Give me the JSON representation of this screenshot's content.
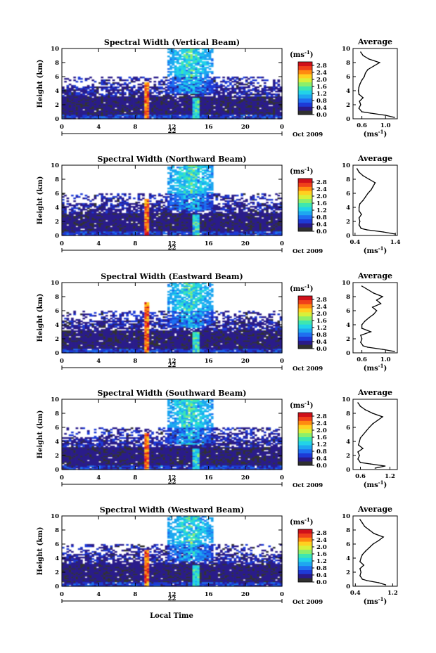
{
  "figure": {
    "xlabel": "Local Time",
    "date_label": "22",
    "month_year_label": "Oct 2009",
    "colorbar_unit": "(ms",
    "colorbar_unit_exp": "-1",
    "colorbar_unit_close": ")",
    "profile_title": "Average",
    "ylabel": "Height (km)",
    "profile_xlabel": "(ms",
    "profile_xlabel_exp": "-1",
    "profile_xlabel_close": ")"
  },
  "colors": {
    "colormap": [
      "#303030",
      "#2a1a8a",
      "#1e3ad6",
      "#1f6ff0",
      "#1ea7f0",
      "#22d3e8",
      "#3ee6b0",
      "#8cef6a",
      "#d8f03a",
      "#ffd020",
      "#ff8a10",
      "#f0401a",
      "#d0101a"
    ]
  },
  "chart_data": [
    {
      "type": "heatmap",
      "title": "Spectral Width (Vertical Beam)",
      "x_ticks": [
        "0",
        "4",
        "8",
        "12",
        "16",
        "20",
        "0"
      ],
      "y_ticks": [
        "0",
        "2",
        "4",
        "6",
        "8",
        "10"
      ],
      "xlim": [
        0,
        24
      ],
      "ylim": [
        0,
        10
      ],
      "colorbar_ticks": [
        "0.0",
        "0.4",
        "0.8",
        "1.2",
        "1.6",
        "2.0",
        "2.4",
        "2.8"
      ],
      "colorbar_range": [
        0.0,
        3.0
      ],
      "profile": {
        "title": "Average",
        "x_ticks": [
          "0.6",
          "1.0"
        ],
        "xlim": [
          0.45,
          1.2
        ],
        "y_ticks": [
          "0",
          "2",
          "4",
          "6",
          "8",
          "10"
        ],
        "ylim": [
          0,
          10
        ],
        "height_km": [
          0.2,
          0.5,
          0.8,
          1.0,
          1.5,
          2.0,
          2.5,
          3.0,
          3.5,
          4.0,
          4.5,
          5.0,
          5.5,
          6.0,
          6.5,
          7.0,
          7.5,
          8.0,
          8.5,
          9.0,
          9.5
        ],
        "width_ms": [
          1.15,
          1.0,
          0.75,
          0.6,
          0.55,
          0.58,
          0.56,
          0.62,
          0.55,
          0.54,
          0.55,
          0.57,
          0.6,
          0.64,
          0.66,
          0.7,
          0.8,
          0.9,
          0.72,
          0.62,
          0.58
        ]
      }
    },
    {
      "type": "heatmap",
      "title": "Spectral Width (Northward Beam)",
      "x_ticks": [
        "0",
        "4",
        "8",
        "12",
        "16",
        "20",
        "0"
      ],
      "y_ticks": [
        "0",
        "2",
        "4",
        "6",
        "8",
        "10"
      ],
      "xlim": [
        0,
        24
      ],
      "ylim": [
        0,
        10
      ],
      "colorbar_ticks": [
        "0.0",
        "0.4",
        "0.8",
        "1.2",
        "1.6",
        "2.0",
        "2.4",
        "2.8"
      ],
      "colorbar_range": [
        0.0,
        3.0
      ],
      "profile": {
        "title": "Average",
        "x_ticks": [
          "0.4",
          "1.4"
        ],
        "xlim": [
          0.35,
          1.45
        ],
        "y_ticks": [
          "0",
          "2",
          "4",
          "6",
          "8",
          "10"
        ],
        "ylim": [
          0,
          10
        ],
        "height_km": [
          0.2,
          0.5,
          0.8,
          1.0,
          1.5,
          2.0,
          2.5,
          3.0,
          3.5,
          4.0,
          4.5,
          5.0,
          5.5,
          6.0,
          6.5,
          7.0,
          7.5,
          8.0,
          8.5,
          9.0,
          9.5
        ],
        "width_ms": [
          1.4,
          1.1,
          0.7,
          0.55,
          0.5,
          0.52,
          0.5,
          0.56,
          0.5,
          0.5,
          0.52,
          0.6,
          0.66,
          0.72,
          0.8,
          0.85,
          0.9,
          0.75,
          0.6,
          0.5,
          0.45
        ]
      }
    },
    {
      "type": "heatmap",
      "title": "Spectral Width (Eastward Beam)",
      "x_ticks": [
        "0",
        "4",
        "8",
        "12",
        "16",
        "20",
        "0"
      ],
      "y_ticks": [
        "0",
        "2",
        "4",
        "6",
        "8",
        "10"
      ],
      "xlim": [
        0,
        24
      ],
      "ylim": [
        0,
        10
      ],
      "colorbar_ticks": [
        "0.0",
        "0.4",
        "0.8",
        "1.2",
        "1.6",
        "2.0",
        "2.4",
        "2.8"
      ],
      "colorbar_range": [
        0.0,
        3.0
      ],
      "profile": {
        "title": "Average",
        "x_ticks": [
          "0.6",
          "1.0"
        ],
        "xlim": [
          0.45,
          1.2
        ],
        "y_ticks": [
          "0",
          "2",
          "4",
          "6",
          "8",
          "10"
        ],
        "ylim": [
          0,
          10
        ],
        "height_km": [
          0.2,
          0.5,
          0.8,
          1.0,
          1.5,
          2.0,
          2.5,
          3.0,
          3.5,
          4.0,
          4.5,
          5.0,
          5.5,
          6.0,
          6.5,
          7.0,
          7.5,
          8.0,
          8.5,
          9.0,
          9.5
        ],
        "width_ms": [
          1.15,
          0.95,
          0.7,
          0.62,
          0.58,
          0.6,
          0.58,
          0.75,
          0.6,
          0.6,
          0.65,
          0.72,
          0.8,
          0.85,
          0.78,
          0.92,
          0.85,
          0.95,
          0.8,
          0.7,
          0.6
        ]
      }
    },
    {
      "type": "heatmap",
      "title": "Spectral Width (Southward Beam)",
      "x_ticks": [
        "0",
        "4",
        "8",
        "12",
        "16",
        "20",
        "0"
      ],
      "y_ticks": [
        "0",
        "2",
        "4",
        "6",
        "8",
        "10"
      ],
      "xlim": [
        0,
        24
      ],
      "ylim": [
        0,
        10
      ],
      "colorbar_ticks": [
        "0.0",
        "0.4",
        "0.8",
        "1.2",
        "1.6",
        "2.0",
        "2.4",
        "2.8"
      ],
      "colorbar_range": [
        0.0,
        3.0
      ],
      "profile": {
        "title": "Average",
        "x_ticks": [
          "0.6",
          "1.2"
        ],
        "xlim": [
          0.45,
          1.35
        ],
        "y_ticks": [
          "0",
          "2",
          "4",
          "6",
          "8",
          "10"
        ],
        "ylim": [
          0,
          10
        ],
        "height_km": [
          0.2,
          0.5,
          0.8,
          1.0,
          1.5,
          2.0,
          2.5,
          3.0,
          3.5,
          4.0,
          4.5,
          5.0,
          5.5,
          6.0,
          6.5,
          7.0,
          7.5,
          8.0,
          8.5,
          9.0,
          9.5
        ],
        "width_ms": [
          0.9,
          1.1,
          0.8,
          0.6,
          0.55,
          0.58,
          0.55,
          0.65,
          0.56,
          0.58,
          0.6,
          0.66,
          0.72,
          0.78,
          0.85,
          0.95,
          1.05,
          0.85,
          0.7,
          0.6,
          0.55
        ]
      }
    },
    {
      "type": "heatmap",
      "title": "Spectral Width (Westward Beam)",
      "x_ticks": [
        "0",
        "4",
        "8",
        "12",
        "16",
        "20",
        "0"
      ],
      "y_ticks": [
        "0",
        "2",
        "4",
        "6",
        "8",
        "10"
      ],
      "xlim": [
        0,
        24
      ],
      "ylim": [
        0,
        10
      ],
      "colorbar_ticks": [
        "0.0",
        "0.4",
        "0.8",
        "1.2",
        "1.6",
        "2.0",
        "2.4",
        "2.8"
      ],
      "colorbar_range": [
        0.0,
        3.0
      ],
      "profile": {
        "title": "Average",
        "x_ticks": [
          "0.4",
          "1.2"
        ],
        "xlim": [
          0.35,
          1.3
        ],
        "y_ticks": [
          "0",
          "2",
          "4",
          "6",
          "8",
          "10"
        ],
        "ylim": [
          0,
          10
        ],
        "height_km": [
          0.2,
          0.5,
          0.8,
          1.0,
          1.5,
          2.0,
          2.5,
          3.0,
          3.5,
          4.0,
          4.5,
          5.0,
          5.5,
          6.0,
          6.5,
          7.0,
          7.5,
          8.0,
          8.5,
          9.0,
          9.5
        ],
        "width_ms": [
          1.05,
          0.9,
          0.65,
          0.55,
          0.5,
          0.52,
          0.5,
          0.58,
          0.5,
          0.52,
          0.55,
          0.62,
          0.7,
          0.78,
          0.9,
          1.0,
          0.8,
          0.7,
          0.6,
          0.55,
          0.5
        ]
      }
    }
  ]
}
